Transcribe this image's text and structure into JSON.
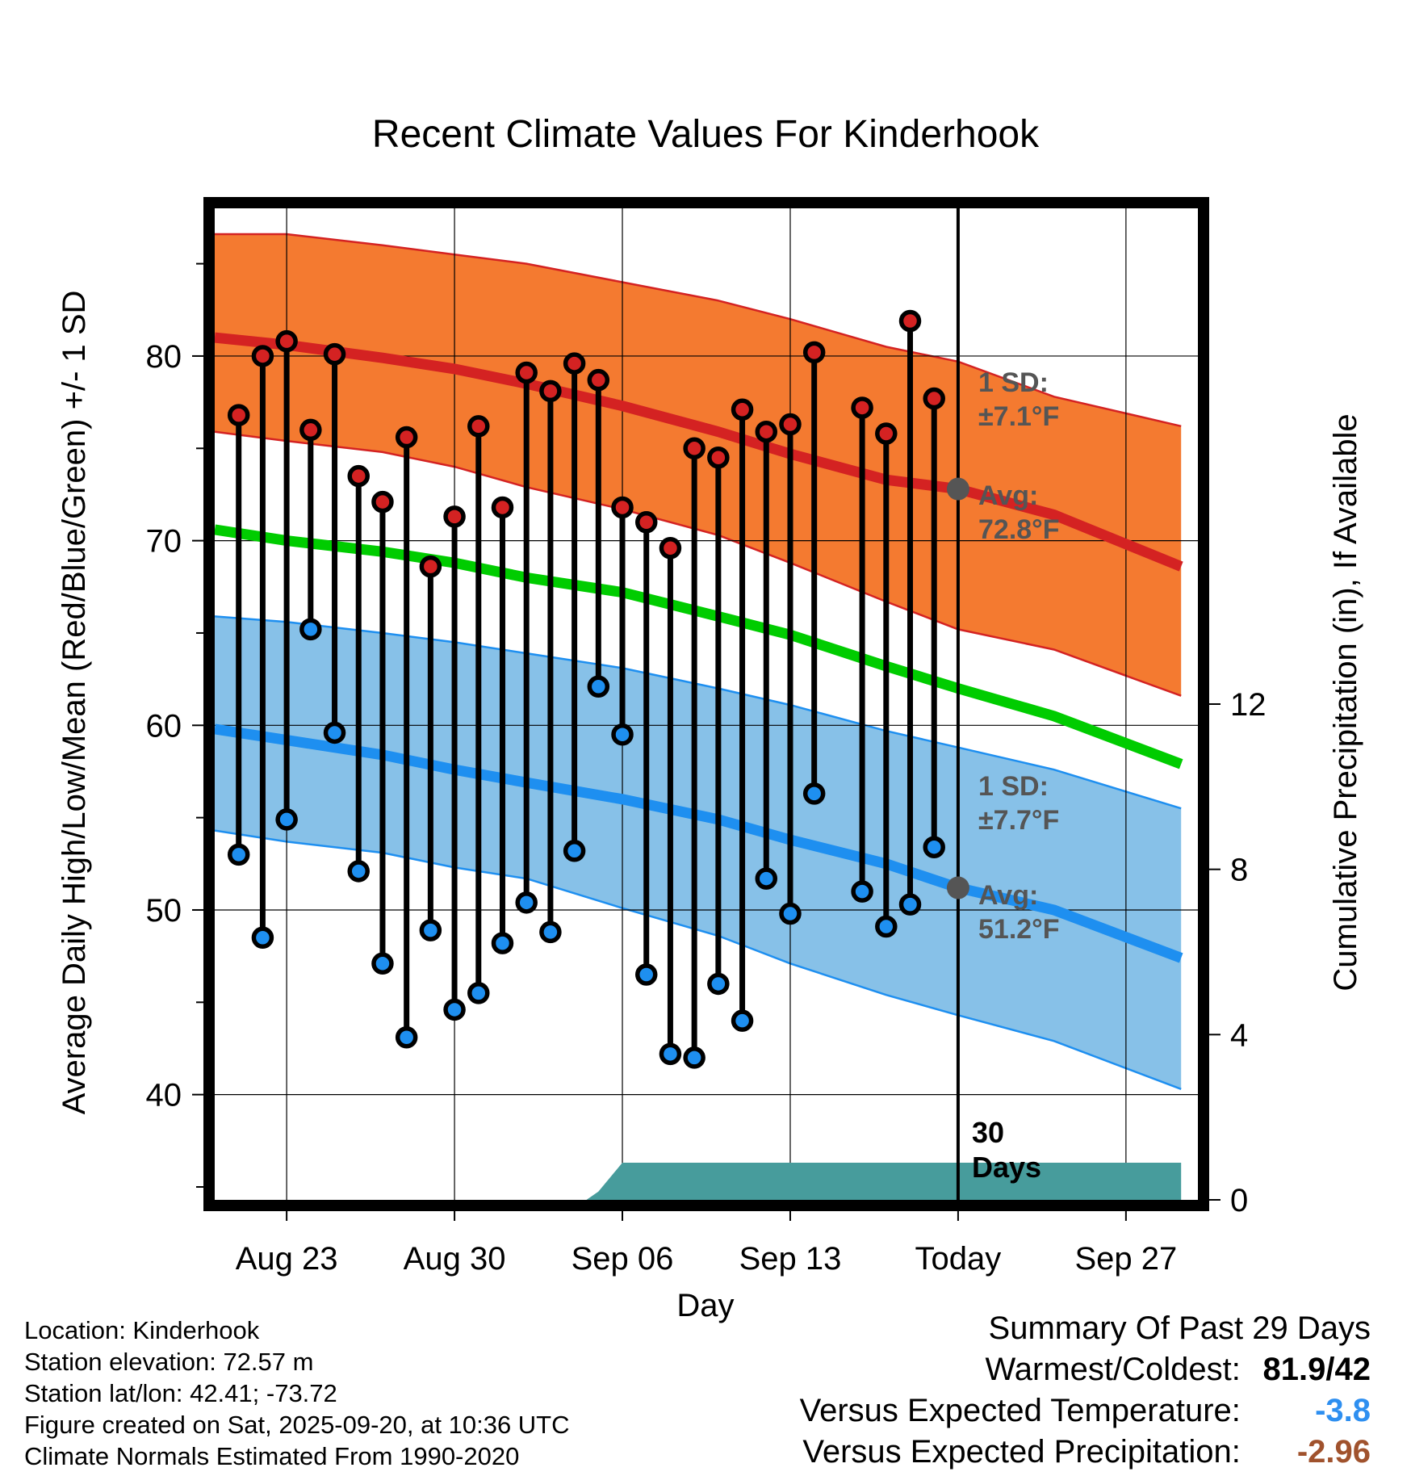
{
  "chart_data": {
    "type": "line",
    "title": "Recent Climate Values For Kinderhook",
    "xlabel": "Day",
    "ylabel": "Average Daily High/Low/Mean (Red/Blue/Green) +/- 1 SD",
    "ylabel_right": "Cumulative Precipitation (in), If Available",
    "xlim": [
      -3,
      38
    ],
    "ylim": [
      34.3,
      88
    ],
    "y2lim": [
      0,
      24
    ],
    "x_ticks": [
      {
        "x": 0,
        "label": "Aug 23"
      },
      {
        "x": 7,
        "label": "Aug 30"
      },
      {
        "x": 14,
        "label": "Sep 06"
      },
      {
        "x": 21,
        "label": "Sep 13"
      },
      {
        "x": 28,
        "label": "Today"
      },
      {
        "x": 35,
        "label": "Sep 27"
      }
    ],
    "y_ticks": [
      40,
      50,
      60,
      70,
      80
    ],
    "y_minor_ticks": [
      35,
      45,
      55,
      65,
      75,
      85
    ],
    "y2_ticks": [
      0,
      4,
      8,
      12
    ],
    "grid": true,
    "today_x": 28,
    "today_label": "30 Days",
    "days_label_line1": "30",
    "days_label_line2": "Days",
    "normals": {
      "x": [
        -3,
        0,
        4,
        7,
        10,
        14,
        18,
        21,
        25,
        28,
        32,
        37.3
      ],
      "avg_high": [
        81.0,
        80.6,
        79.9,
        79.3,
        78.5,
        77.3,
        75.9,
        74.7,
        73.3,
        72.8,
        71.4,
        68.6
      ],
      "high_sd_upper": [
        86.6,
        86.6,
        86.0,
        85.5,
        85.0,
        84.0,
        83.0,
        82.0,
        80.5,
        79.7,
        77.8,
        76.2
      ],
      "high_sd_lower": [
        75.9,
        75.4,
        74.8,
        74.0,
        72.9,
        71.7,
        70.3,
        68.8,
        66.7,
        65.2,
        64.1,
        61.6
      ],
      "avg_mean": [
        70.6,
        70.0,
        69.4,
        68.8,
        68.0,
        67.2,
        65.9,
        64.9,
        63.2,
        62.0,
        60.5,
        57.9
      ],
      "avg_low": [
        59.8,
        59.2,
        58.4,
        57.6,
        56.9,
        56.0,
        54.9,
        53.8,
        52.5,
        51.2,
        50.0,
        47.4
      ],
      "low_sd_upper": [
        65.9,
        65.6,
        65.0,
        64.5,
        63.9,
        63.1,
        62.0,
        61.1,
        59.7,
        58.8,
        57.6,
        55.5
      ],
      "low_sd_lower": [
        54.3,
        53.7,
        53.1,
        52.3,
        51.7,
        50.1,
        48.6,
        47.1,
        45.4,
        44.3,
        42.9,
        40.3
      ]
    },
    "daily": {
      "x": [
        -2,
        -1,
        0,
        1,
        2,
        3,
        4,
        5,
        6,
        7,
        8,
        9,
        10,
        11,
        12,
        13,
        14,
        15,
        16,
        17,
        18,
        19,
        20,
        21,
        22,
        24,
        25,
        26,
        27
      ],
      "highs": [
        76.8,
        80.0,
        80.8,
        76.0,
        80.1,
        73.5,
        72.1,
        75.6,
        68.6,
        71.3,
        76.2,
        71.8,
        79.1,
        78.1,
        79.6,
        78.7,
        71.8,
        71.0,
        69.6,
        75.0,
        74.5,
        77.1,
        75.9,
        76.3,
        80.2,
        77.2,
        75.8,
        81.9,
        77.7
      ],
      "lows": [
        53.0,
        48.5,
        54.9,
        65.2,
        59.6,
        52.1,
        47.1,
        43.1,
        48.9,
        44.6,
        45.5,
        48.2,
        50.4,
        48.8,
        53.2,
        62.1,
        59.5,
        46.5,
        42.2,
        42.0,
        46.0,
        44.0,
        51.7,
        49.8,
        56.3,
        51.0,
        49.1,
        50.3,
        53.4
      ]
    },
    "precip": {
      "x": [
        -3,
        8.5,
        12.5,
        13,
        14,
        37.3
      ],
      "cum_in": [
        0,
        0,
        0,
        0.2,
        0.9,
        0.9
      ]
    },
    "annotations": {
      "high_sd_line1": "1 SD:",
      "high_sd_line2": "±7.1°F",
      "high_avg_line1": "Avg:",
      "high_avg_line2": "72.8°F",
      "low_sd_line1": "1 SD:",
      "low_sd_line2": "±7.7°F",
      "low_avg_line1": "Avg:",
      "low_avg_line2": "51.2°F"
    },
    "colors": {
      "high_band": "#f47a30",
      "high_line": "#d42222",
      "mean_line": "#00cc00",
      "low_band": "#87c1e8",
      "low_line": "#1e8ff0",
      "precip": "#479c9c",
      "high_marker": "#d42222",
      "low_marker": "#1e8ff0",
      "avg_marker": "#555555"
    }
  },
  "info": {
    "location": "Location: Kinderhook",
    "elevation": "Station elevation: 72.57 m",
    "latlon": "Station lat/lon: 42.41; -73.72",
    "created": "Figure created on Sat, 2025-09-20, at 10:36 UTC",
    "normals": "Climate Normals Estimated From 1990-2020"
  },
  "summary": {
    "title": "Summary Of Past 29 Days",
    "warm_cold_label": "Warmest/Coldest:",
    "warm_cold_value": "81.9/42",
    "temp_label": "Versus Expected Temperature:",
    "temp_value": "-3.8",
    "temp_color": "#2e8ff0",
    "precip_label": "Versus Expected Precipitation:",
    "precip_value": "-2.96",
    "precip_color": "#a0522d"
  }
}
